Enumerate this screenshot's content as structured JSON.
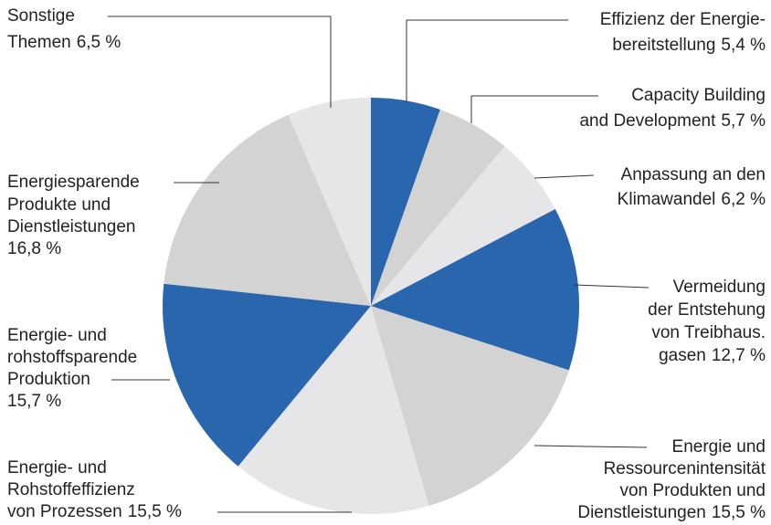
{
  "chart_data": {
    "type": "pie",
    "categories": [
      [
        "Effizienz der Energie-",
        "bereitstellung"
      ],
      [
        "Capacity Building",
        "and Development"
      ],
      [
        "Anpassung an den",
        "Klimawandel"
      ],
      [
        "Vermeidung",
        "der Entstehung",
        "von Treibhaus.",
        "gasen"
      ],
      [
        "Energie und",
        "Ressourcenintensität",
        "von Produkten und",
        "Dienstleistungen"
      ],
      [
        "Energie- und",
        "Rohstoffeffizienz",
        "von Prozessen"
      ],
      [
        "Energie- und",
        "rohstoffsparende",
        "Produktion"
      ],
      [
        "Energiesparende",
        "Produkte und",
        "Dienstleistungen"
      ],
      [
        "Sonstige",
        "Themen"
      ]
    ],
    "values": [
      5.4,
      5.7,
      6.2,
      12.7,
      15.5,
      15.5,
      15.7,
      16.8,
      6.5
    ],
    "value_labels": [
      "5,4 %",
      "5,7 %",
      "6,2 %",
      "12,7 %",
      "15,5 %",
      "15,5 %",
      "15,7 %",
      "16,8 %",
      "6,5 %"
    ],
    "colors": [
      "#2966ad",
      "#d3d3d4",
      "#e6e6e8",
      "#2966ad",
      "#d3d3d4",
      "#e6e6e8",
      "#2966ad",
      "#d3d3d4",
      "#e6e6e8"
    ]
  }
}
